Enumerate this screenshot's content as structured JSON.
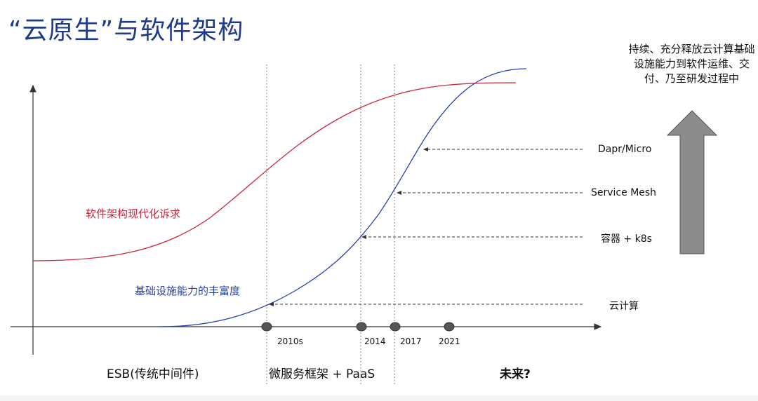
{
  "title": "“云原生”与软件架构",
  "curves": {
    "red": {
      "label": "软件架构现代化诉求",
      "color": "#c8283c"
    },
    "blue": {
      "label": "基础设施能力的丰富度",
      "color": "#2a3fb0"
    }
  },
  "timeline": {
    "years": [
      "2010s",
      "2014",
      "2017",
      "2021"
    ]
  },
  "eras": {
    "left": "ESB(传统中间件)",
    "middle": "微服务框架 + PaaS",
    "right": "未来?"
  },
  "milestones": [
    {
      "label": "Dapr/Micro"
    },
    {
      "label": "Service Mesh"
    },
    {
      "label": "容器 + k8s"
    },
    {
      "label": "云计算"
    }
  ],
  "side_note": "持续、充分释放云计算基础设施能力到软件运维、交付、乃至研发过程中",
  "colors": {
    "title": "#1f3a8a",
    "arrow": "#8c8c8c",
    "axis": "#333333"
  }
}
